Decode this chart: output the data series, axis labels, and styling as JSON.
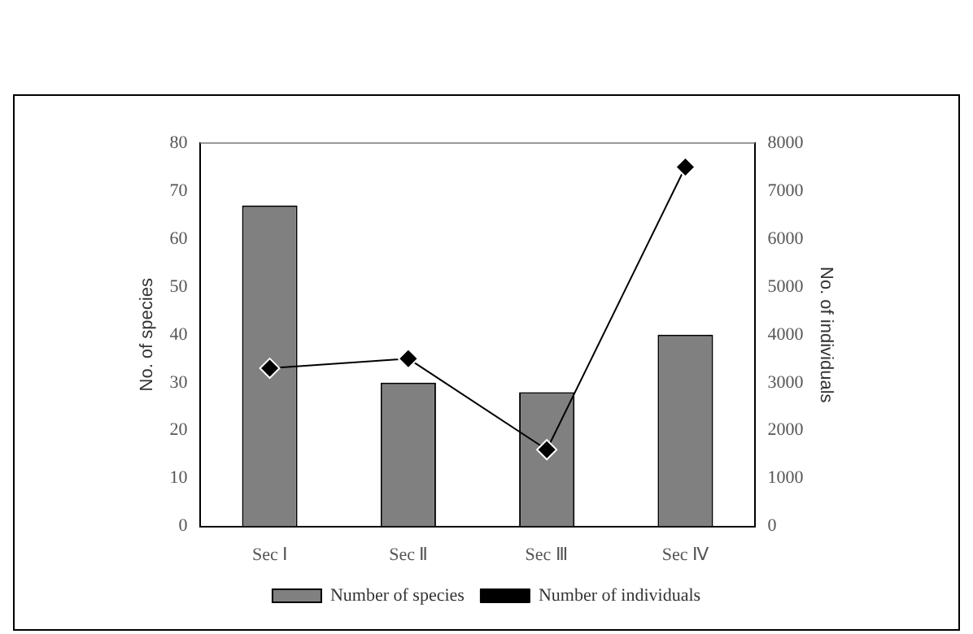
{
  "chart_data": {
    "type": "bar",
    "categories": [
      "Sec Ⅰ",
      "Sec Ⅱ",
      "Sec Ⅲ",
      "Sec Ⅳ"
    ],
    "ylabel": "No. of species",
    "y2label": "No. of individuals",
    "series": [
      {
        "name": "Number of species",
        "color": "#808080",
        "values": [
          67,
          30,
          28,
          40
        ]
      },
      {
        "name": "Number of individuals",
        "type": "line",
        "axis": "y2",
        "color": "#000000",
        "values": [
          3300,
          3500,
          1600,
          7500
        ]
      }
    ],
    "ylim": [
      0,
      80
    ],
    "yticks": [
      0,
      10,
      20,
      30,
      40,
      50,
      60,
      70,
      80
    ],
    "y2lim": [
      0,
      8000
    ],
    "y2ticks": [
      0,
      1000,
      2000,
      3000,
      4000,
      5000,
      6000,
      7000,
      8000
    ],
    "marker": "diamond",
    "line_style": "solid",
    "grid": false,
    "legend": "bottom"
  }
}
